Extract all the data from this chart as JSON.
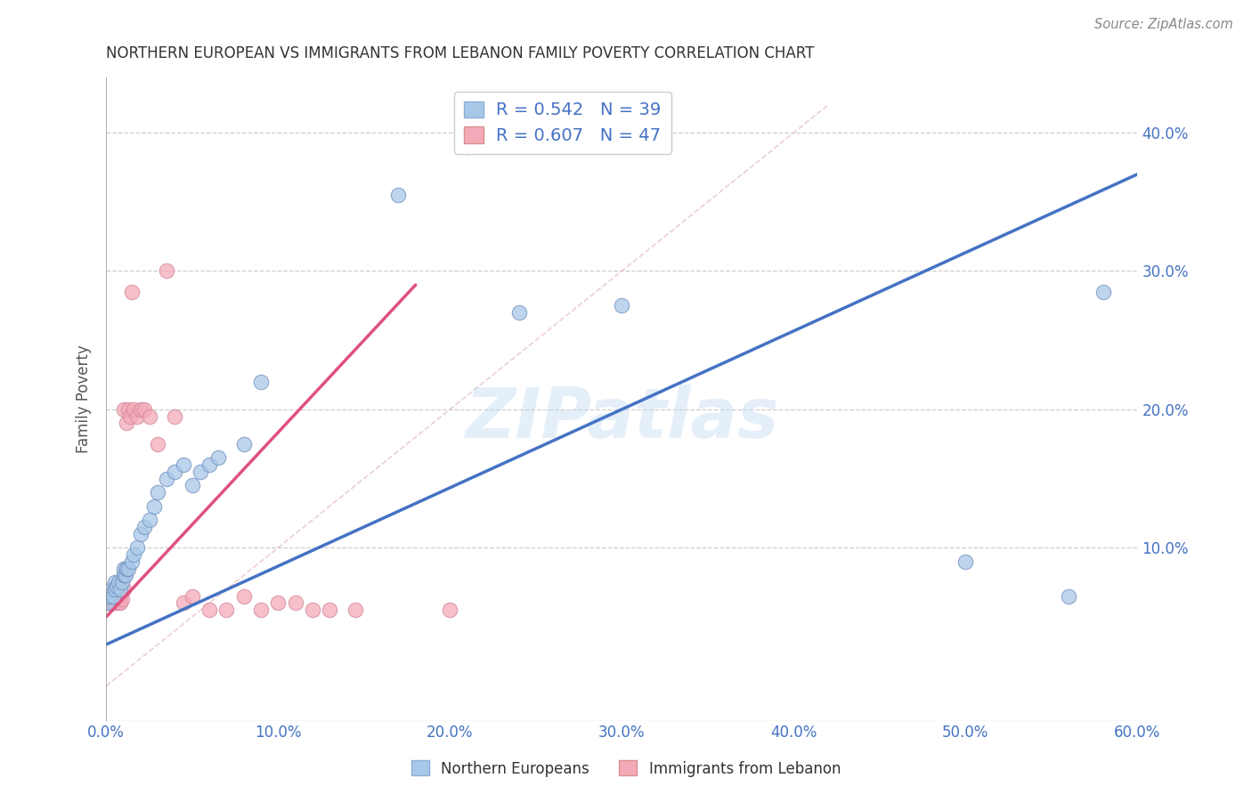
{
  "title": "NORTHERN EUROPEAN VS IMMIGRANTS FROM LEBANON FAMILY POVERTY CORRELATION CHART",
  "source": "Source: ZipAtlas.com",
  "ylabel": "Family Poverty",
  "xlim": [
    0.0,
    0.6
  ],
  "ylim": [
    -0.025,
    0.44
  ],
  "xticks": [
    0.0,
    0.1,
    0.2,
    0.3,
    0.4,
    0.5,
    0.6
  ],
  "yticks": [
    0.0,
    0.1,
    0.2,
    0.3,
    0.4
  ],
  "xtick_labels": [
    "0.0%",
    "10.0%",
    "20.0%",
    "30.0%",
    "40.0%",
    "50.0%",
    "60.0%"
  ],
  "ytick_labels": [
    "",
    "10.0%",
    "20.0%",
    "30.0%",
    "40.0%"
  ],
  "legend_label1": "R = 0.542   N = 39",
  "legend_label2": "R = 0.607   N = 47",
  "legend_label1_short": "Northern Europeans",
  "legend_label2_short": "Immigrants from Lebanon",
  "color_blue": "#a8c8e8",
  "color_pink": "#f4aab8",
  "color_blue_line": "#4472c4",
  "color_pink_line": "#e05080",
  "color_diag": "#d0a0a0",
  "watermark": "ZIPatlas",
  "background_color": "#ffffff",
  "grid_color": "#c8c8c8",
  "blue_line_x0": 0.0,
  "blue_line_y0": 0.03,
  "blue_line_x1": 0.6,
  "blue_line_y1": 0.37,
  "pink_line_x0": 0.0,
  "pink_line_y0": 0.05,
  "pink_line_x1": 0.18,
  "pink_line_y1": 0.29,
  "blue_x": [
    0.001,
    0.002,
    0.003,
    0.004,
    0.005,
    0.005,
    0.006,
    0.007,
    0.008,
    0.009,
    0.01,
    0.01,
    0.011,
    0.012,
    0.013,
    0.015,
    0.016,
    0.018,
    0.02,
    0.022,
    0.025,
    0.028,
    0.03,
    0.035,
    0.04,
    0.045,
    0.05,
    0.055,
    0.06,
    0.065,
    0.08,
    0.09,
    0.17,
    0.21,
    0.24,
    0.3,
    0.5,
    0.56,
    0.58
  ],
  "blue_y": [
    0.06,
    0.065,
    0.07,
    0.065,
    0.07,
    0.075,
    0.072,
    0.075,
    0.07,
    0.075,
    0.08,
    0.085,
    0.08,
    0.085,
    0.085,
    0.09,
    0.095,
    0.1,
    0.11,
    0.115,
    0.12,
    0.13,
    0.14,
    0.15,
    0.155,
    0.16,
    0.145,
    0.155,
    0.16,
    0.165,
    0.175,
    0.22,
    0.355,
    0.39,
    0.27,
    0.275,
    0.09,
    0.065,
    0.285
  ],
  "pink_x": [
    0.001,
    0.001,
    0.002,
    0.002,
    0.003,
    0.003,
    0.003,
    0.004,
    0.004,
    0.005,
    0.005,
    0.005,
    0.006,
    0.006,
    0.007,
    0.007,
    0.007,
    0.008,
    0.008,
    0.009,
    0.01,
    0.01,
    0.011,
    0.012,
    0.013,
    0.014,
    0.015,
    0.016,
    0.018,
    0.02,
    0.022,
    0.025,
    0.03,
    0.035,
    0.04,
    0.045,
    0.05,
    0.06,
    0.07,
    0.08,
    0.09,
    0.1,
    0.11,
    0.12,
    0.13,
    0.145,
    0.2
  ],
  "pink_y": [
    0.06,
    0.065,
    0.06,
    0.065,
    0.06,
    0.062,
    0.065,
    0.06,
    0.065,
    0.06,
    0.065,
    0.07,
    0.063,
    0.068,
    0.06,
    0.065,
    0.068,
    0.06,
    0.065,
    0.063,
    0.07,
    0.2,
    0.085,
    0.19,
    0.2,
    0.195,
    0.285,
    0.2,
    0.195,
    0.2,
    0.2,
    0.195,
    0.175,
    0.3,
    0.195,
    0.06,
    0.065,
    0.055,
    0.055,
    0.065,
    0.055,
    0.06,
    0.06,
    0.055,
    0.055,
    0.055,
    0.055
  ]
}
